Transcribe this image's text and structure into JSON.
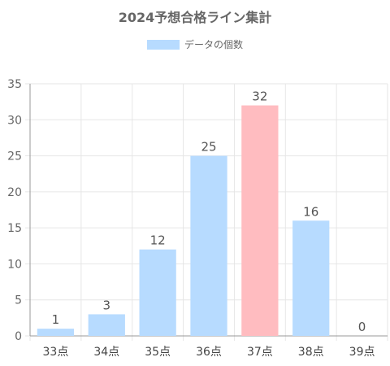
{
  "chart_data": {
    "type": "bar",
    "title": "2024予想合格ライン集計",
    "legend": {
      "label": "データの個数",
      "placement": "top-center"
    },
    "categories": [
      "33点",
      "34点",
      "35点",
      "36点",
      "37点",
      "38点",
      "39点"
    ],
    "series": [
      {
        "name": "データの個数",
        "values": [
          1,
          3,
          12,
          25,
          32,
          16,
          0
        ]
      }
    ],
    "ylim": [
      0,
      35
    ],
    "yticks": [
      0,
      5,
      10,
      15,
      20,
      25,
      30,
      35
    ],
    "grid": true,
    "data_labels": true,
    "highlight_index": 4,
    "colors": {
      "bar": "#b7dbff",
      "highlight": "#ffbcc0",
      "grid": "#e6e6e6",
      "axis": "#999999",
      "text": "#666666"
    }
  }
}
